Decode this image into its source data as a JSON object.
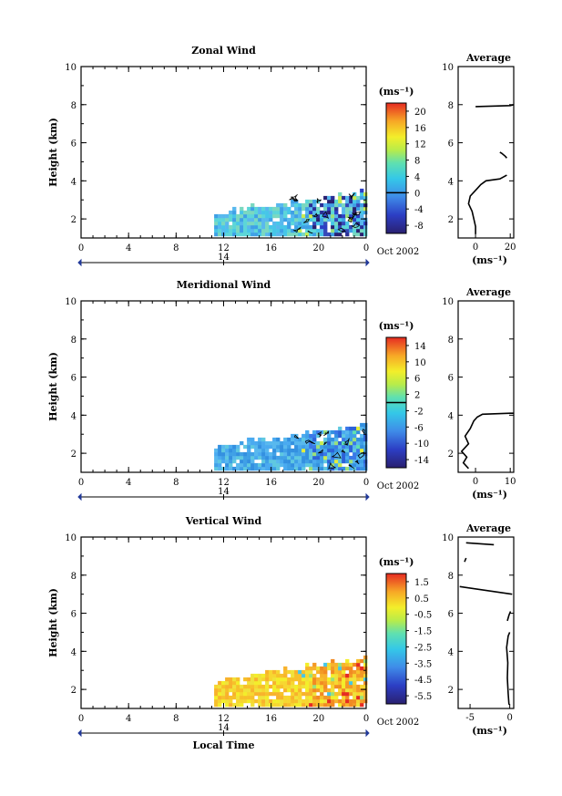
{
  "chart_data": [
    {
      "type": "heatmap",
      "title": "Zonal Wind",
      "ylabel": "Height (km)",
      "xlabel": "",
      "x_ticks": [
        "0",
        "4",
        "8",
        "12",
        "16",
        "20",
        "0"
      ],
      "y_ticks": [
        "2",
        "4",
        "6",
        "8",
        "10"
      ],
      "ylim": [
        1,
        10
      ],
      "xlim_hours": [
        0,
        24
      ],
      "date_label": "14",
      "date_right_label": "Oct 2002",
      "data_extent": {
        "start_hour": 11.2,
        "end_hour": 24,
        "min_height_km": 1.1,
        "max_height_km": 3.5
      },
      "colorbar": {
        "unit_label": "(ms⁻¹)",
        "tick_labels": [
          "20",
          "16",
          "12",
          "8",
          "4",
          "0",
          "-4",
          "-8"
        ],
        "zero_line_label": "0",
        "range": [
          -10,
          22
        ]
      },
      "average_profile": {
        "title": "Average",
        "xlabel": "(ms⁻¹)",
        "x_ticks": [
          "0",
          "20"
        ],
        "y_ticks": [
          "2",
          "4",
          "6",
          "8",
          "10"
        ],
        "xlim": [
          -10,
          22
        ],
        "ylim": [
          1,
          10
        ],
        "segments": [
          [
            [
              0,
              1.2
            ],
            [
              0,
              1.6
            ],
            [
              -1,
              2.0
            ],
            [
              -2,
              2.4
            ],
            [
              -4,
              2.8
            ],
            [
              -3,
              3.2
            ],
            [
              1,
              3.6
            ],
            [
              3,
              3.8
            ],
            [
              6,
              4.0
            ],
            [
              14,
              4.1
            ],
            [
              18,
              4.3
            ]
          ],
          [
            [
              18,
              5.2
            ],
            [
              17,
              5.3
            ],
            [
              15,
              5.45
            ],
            [
              14,
              5.5
            ]
          ],
          [
            [
              0,
              7.9
            ],
            [
              20,
              7.95
            ],
            [
              22,
              8.0
            ]
          ]
        ]
      }
    },
    {
      "type": "heatmap",
      "title": "Meridional Wind",
      "ylabel": "Height (km)",
      "xlabel": "",
      "x_ticks": [
        "0",
        "4",
        "8",
        "12",
        "16",
        "20",
        "0"
      ],
      "y_ticks": [
        "2",
        "4",
        "6",
        "8",
        "10"
      ],
      "ylim": [
        1,
        10
      ],
      "xlim_hours": [
        0,
        24
      ],
      "date_label": "14",
      "date_right_label": "Oct 2002",
      "data_extent": {
        "start_hour": 11.2,
        "end_hour": 24,
        "min_height_km": 1.1,
        "max_height_km": 3.6
      },
      "colorbar": {
        "unit_label": "(ms⁻¹)",
        "tick_labels": [
          "14",
          "10",
          "6",
          "2",
          "-2",
          "-6",
          "-10",
          "-14"
        ],
        "zero_line_label": "0",
        "range": [
          -16,
          16
        ]
      },
      "average_profile": {
        "title": "Average",
        "xlabel": "(ms⁻¹)",
        "x_ticks": [
          "0",
          "10"
        ],
        "y_ticks": [
          "2",
          "4",
          "6",
          "8",
          "10"
        ],
        "xlim": [
          -5,
          11
        ],
        "ylim": [
          1,
          10
        ],
        "segments": [
          [
            [
              -2,
              1.2
            ],
            [
              -3.5,
              1.5
            ],
            [
              -2.5,
              1.8
            ],
            [
              -4,
              2.1
            ],
            [
              -2,
              2.5
            ],
            [
              -3,
              2.9
            ],
            [
              -1.5,
              3.3
            ],
            [
              -0.5,
              3.7
            ],
            [
              0.5,
              3.9
            ],
            [
              2,
              4.05
            ],
            [
              10,
              4.1
            ],
            [
              11,
              4.1
            ]
          ]
        ]
      }
    },
    {
      "type": "heatmap",
      "title": "Vertical Wind",
      "ylabel": "Height (km)",
      "xlabel": "Local Time",
      "x_ticks": [
        "0",
        "4",
        "8",
        "12",
        "16",
        "20",
        "0"
      ],
      "y_ticks": [
        "2",
        "4",
        "6",
        "8",
        "10"
      ],
      "ylim": [
        1,
        10
      ],
      "xlim_hours": [
        0,
        24
      ],
      "date_label": "14",
      "date_right_label": "Oct 2002",
      "data_extent": {
        "start_hour": 11.2,
        "end_hour": 24,
        "min_height_km": 1.1,
        "max_height_km": 3.8
      },
      "colorbar": {
        "unit_label": "(ms⁻¹)",
        "tick_labels": [
          "1.5",
          "0.5",
          "-0.5",
          "-1.5",
          "-2.5",
          "-3.5",
          "-4.5",
          "-5.5"
        ],
        "range": [
          -6,
          2
        ]
      },
      "average_profile": {
        "title": "Average",
        "xlabel": "(ms⁻¹)",
        "x_ticks": [
          "-5",
          "0"
        ],
        "y_ticks": [
          "2",
          "4",
          "6",
          "8",
          "10"
        ],
        "xlim": [
          -6.5,
          0.5
        ],
        "ylim": [
          1,
          10
        ],
        "segments": [
          [
            [
              -0.1,
              1.2
            ],
            [
              -0.2,
              1.8
            ],
            [
              -0.3,
              2.6
            ],
            [
              -0.25,
              3.4
            ],
            [
              -0.4,
              4.2
            ],
            [
              -0.2,
              4.8
            ],
            [
              0,
              5.0
            ]
          ],
          [
            [
              -0.3,
              5.6
            ],
            [
              -0.1,
              5.9
            ],
            [
              0.1,
              6.1
            ]
          ],
          [
            [
              -6.3,
              7.4
            ],
            [
              0.3,
              7.0
            ]
          ],
          [
            [
              -5.5,
              9.7
            ],
            [
              -2.0,
              9.6
            ]
          ],
          [
            [
              -5.5,
              8.9
            ],
            [
              -5.7,
              8.7
            ]
          ]
        ]
      }
    }
  ]
}
